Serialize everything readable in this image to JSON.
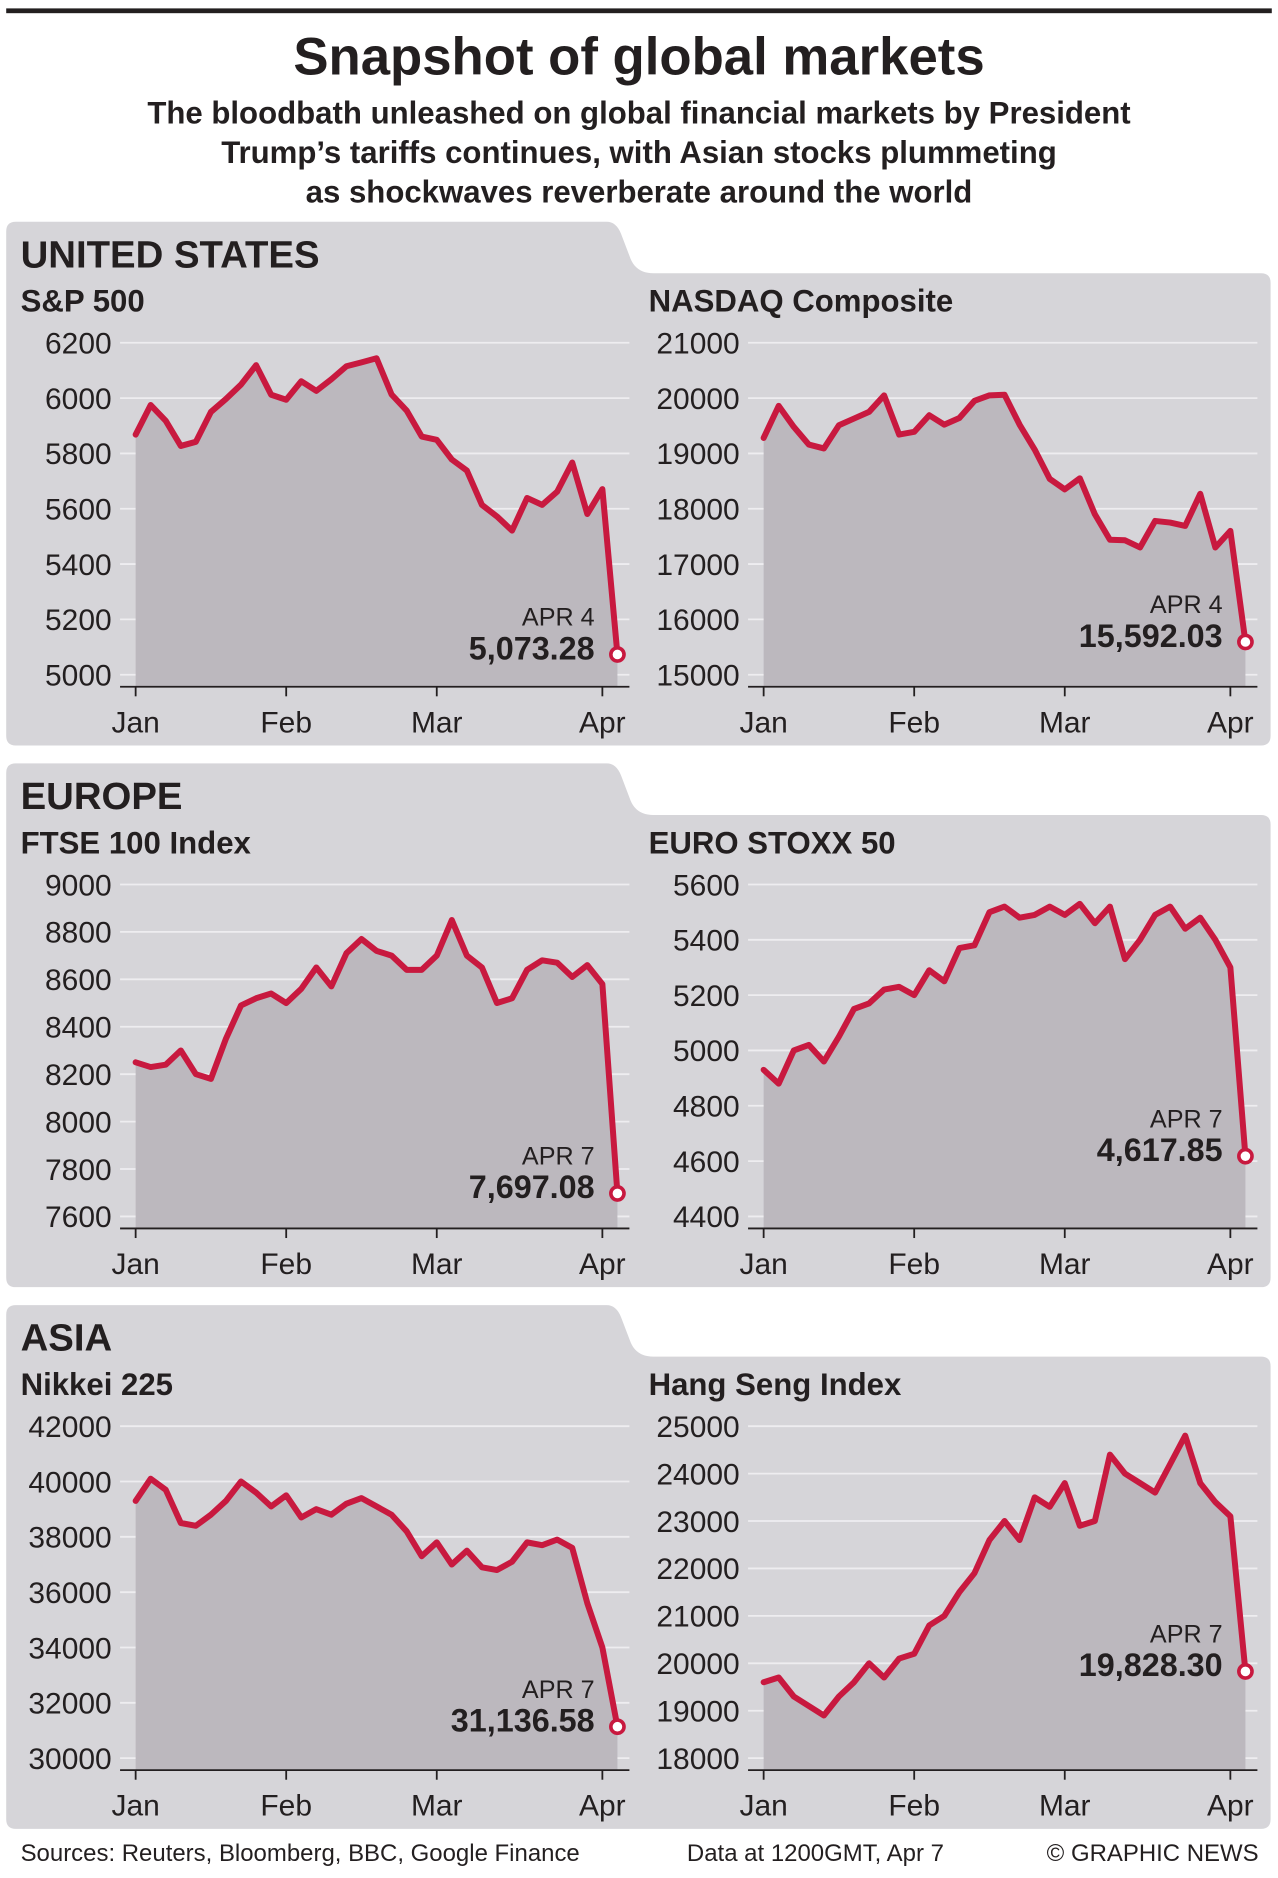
{
  "title": "Snapshot of global markets",
  "subtitle": [
    "The bloodbath unleashed on global financial markets by President",
    "Trump’s tariffs continues, with Asian stocks plummeting",
    "as shockwaves reverberate around the world"
  ],
  "sections": [
    "UNITED STATES",
    "EUROPE",
    "ASIA"
  ],
  "sources": "Sources: Reuters, Bloomberg, BBC, Google Finance",
  "data_note": "Data at 1200GMT, Apr 7",
  "credit": "© GRAPHIC NEWS",
  "chart_data": [
    {
      "type": "line",
      "title": "S&P 500",
      "color": "#c8193f",
      "area_color": "#bcb8be",
      "grid": true,
      "categories": [
        "Jan",
        null,
        null,
        null,
        null,
        null,
        null,
        null,
        null,
        null,
        "Feb",
        null,
        null,
        null,
        null,
        null,
        null,
        null,
        null,
        null,
        "Mar",
        null,
        null,
        null,
        null,
        null,
        null,
        null,
        null,
        null,
        null,
        "Apr",
        null
      ],
      "values": [
        5868,
        5975,
        5918,
        5827,
        5842,
        5950,
        5997,
        6049,
        6119,
        6012,
        5994,
        6061,
        6026,
        6068,
        6115,
        6129,
        6144,
        6013,
        5955,
        5861,
        5849,
        5778,
        5738,
        5614,
        5572,
        5521,
        5639,
        5614,
        5662,
        5767,
        5581,
        5671,
        5073.28
      ],
      "value_labels": [
        null,
        null,
        null,
        null,
        null,
        null,
        null,
        null,
        null,
        null,
        null,
        null,
        null,
        null,
        null,
        null,
        null,
        null,
        null,
        null,
        null,
        null,
        null,
        null,
        null,
        null,
        null,
        null,
        null,
        null,
        null,
        null,
        "5,073.28"
      ],
      "last_date": "APR 4",
      "ylim": [
        5000,
        6200
      ],
      "yticks": [
        5000,
        5200,
        5400,
        5600,
        5800,
        6000,
        6200
      ]
    },
    {
      "type": "line",
      "title": "NASDAQ Composite",
      "color": "#c8193f",
      "area_color": "#bcb8be",
      "grid": true,
      "categories": [
        "Jan",
        null,
        null,
        null,
        null,
        null,
        null,
        null,
        null,
        null,
        "Feb",
        null,
        null,
        null,
        null,
        null,
        null,
        null,
        null,
        null,
        "Mar",
        null,
        null,
        null,
        null,
        null,
        null,
        null,
        null,
        null,
        null,
        "Apr",
        null
      ],
      "values": [
        19280,
        19860,
        19480,
        19160,
        19090,
        19510,
        19630,
        19750,
        20050,
        19340,
        19390,
        19690,
        19520,
        19640,
        19950,
        20050,
        20060,
        19520,
        19070,
        18540,
        18350,
        18550,
        17900,
        17440,
        17430,
        17300,
        17780,
        17750,
        17690,
        18270,
        17300,
        17600,
        15592.03
      ],
      "value_labels": [
        null,
        null,
        null,
        null,
        null,
        null,
        null,
        null,
        null,
        null,
        null,
        null,
        null,
        null,
        null,
        null,
        null,
        null,
        null,
        null,
        null,
        null,
        null,
        null,
        null,
        null,
        null,
        null,
        null,
        null,
        null,
        null,
        "15,592.03"
      ],
      "last_date": "APR 4",
      "ylim": [
        15000,
        21000
      ],
      "yticks": [
        15000,
        16000,
        17000,
        18000,
        19000,
        20000,
        21000
      ]
    },
    {
      "type": "line",
      "title": "FTSE 100 Index",
      "color": "#c8193f",
      "area_color": "#bcb8be",
      "grid": true,
      "categories": [
        "Jan",
        null,
        null,
        null,
        null,
        null,
        null,
        null,
        null,
        null,
        "Feb",
        null,
        null,
        null,
        null,
        null,
        null,
        null,
        null,
        null,
        "Mar",
        null,
        null,
        null,
        null,
        null,
        null,
        null,
        null,
        null,
        null,
        "Apr",
        null
      ],
      "values": [
        8250,
        8230,
        8240,
        8300,
        8200,
        8180,
        8350,
        8490,
        8520,
        8540,
        8500,
        8560,
        8650,
        8570,
        8710,
        8770,
        8720,
        8700,
        8640,
        8640,
        8700,
        8850,
        8700,
        8650,
        8500,
        8520,
        8640,
        8680,
        8670,
        8610,
        8660,
        8580,
        7697.08
      ],
      "value_labels": [
        null,
        null,
        null,
        null,
        null,
        null,
        null,
        null,
        null,
        null,
        null,
        null,
        null,
        null,
        null,
        null,
        null,
        null,
        null,
        null,
        null,
        null,
        null,
        null,
        null,
        null,
        null,
        null,
        null,
        null,
        null,
        null,
        "7,697.08"
      ],
      "last_date": "APR 7",
      "ylim": [
        7600,
        9000
      ],
      "yticks": [
        7600,
        7800,
        8000,
        8200,
        8400,
        8600,
        8800,
        9000
      ]
    },
    {
      "type": "line",
      "title": "EURO STOXX 50",
      "color": "#c8193f",
      "area_color": "#bcb8be",
      "grid": true,
      "categories": [
        "Jan",
        null,
        null,
        null,
        null,
        null,
        null,
        null,
        null,
        null,
        "Feb",
        null,
        null,
        null,
        null,
        null,
        null,
        null,
        null,
        null,
        "Mar",
        null,
        null,
        null,
        null,
        null,
        null,
        null,
        null,
        null,
        null,
        "Apr",
        null
      ],
      "values": [
        4930,
        4880,
        5000,
        5020,
        4960,
        5050,
        5150,
        5170,
        5220,
        5230,
        5200,
        5290,
        5250,
        5370,
        5380,
        5500,
        5520,
        5480,
        5490,
        5520,
        5490,
        5530,
        5460,
        5520,
        5330,
        5400,
        5490,
        5520,
        5440,
        5480,
        5400,
        5300,
        4617.85
      ],
      "value_labels": [
        null,
        null,
        null,
        null,
        null,
        null,
        null,
        null,
        null,
        null,
        null,
        null,
        null,
        null,
        null,
        null,
        null,
        null,
        null,
        null,
        null,
        null,
        null,
        null,
        null,
        null,
        null,
        null,
        null,
        null,
        null,
        null,
        "4,617.85"
      ],
      "last_date": "APR 7",
      "ylim": [
        4400,
        5600
      ],
      "yticks": [
        4400,
        4600,
        4800,
        5000,
        5200,
        5400,
        5600
      ]
    },
    {
      "type": "line",
      "title": "Nikkei 225",
      "color": "#c8193f",
      "area_color": "#bcb8be",
      "grid": true,
      "categories": [
        "Jan",
        null,
        null,
        null,
        null,
        null,
        null,
        null,
        null,
        null,
        "Feb",
        null,
        null,
        null,
        null,
        null,
        null,
        null,
        null,
        null,
        "Mar",
        null,
        null,
        null,
        null,
        null,
        null,
        null,
        null,
        null,
        null,
        "Apr",
        null
      ],
      "values": [
        39300,
        40100,
        39700,
        38500,
        38400,
        38800,
        39300,
        40000,
        39600,
        39100,
        39500,
        38700,
        39000,
        38800,
        39200,
        39400,
        39100,
        38800,
        38200,
        37300,
        37800,
        37000,
        37500,
        36900,
        36800,
        37100,
        37800,
        37700,
        37900,
        37600,
        35600,
        34000,
        31136.58
      ],
      "value_labels": [
        null,
        null,
        null,
        null,
        null,
        null,
        null,
        null,
        null,
        null,
        null,
        null,
        null,
        null,
        null,
        null,
        null,
        null,
        null,
        null,
        null,
        null,
        null,
        null,
        null,
        null,
        null,
        null,
        null,
        null,
        null,
        null,
        "31,136.58"
      ],
      "last_date": "APR 7",
      "ylim": [
        30000,
        42000
      ],
      "yticks": [
        30000,
        32000,
        34000,
        36000,
        38000,
        40000,
        42000
      ]
    },
    {
      "type": "line",
      "title": "Hang Seng Index",
      "color": "#c8193f",
      "area_color": "#bcb8be",
      "grid": true,
      "categories": [
        "Jan",
        null,
        null,
        null,
        null,
        null,
        null,
        null,
        null,
        null,
        "Feb",
        null,
        null,
        null,
        null,
        null,
        null,
        null,
        null,
        null,
        "Mar",
        null,
        null,
        null,
        null,
        null,
        null,
        null,
        null,
        null,
        null,
        "Apr",
        null
      ],
      "values": [
        19600,
        19700,
        19300,
        19100,
        18900,
        19300,
        19600,
        20000,
        19700,
        20100,
        20200,
        20800,
        21000,
        21500,
        21900,
        22600,
        23000,
        22600,
        23500,
        23300,
        23800,
        22900,
        23000,
        24400,
        24000,
        23800,
        23600,
        24200,
        24800,
        23800,
        23400,
        23100,
        19828.3
      ],
      "value_labels": [
        null,
        null,
        null,
        null,
        null,
        null,
        null,
        null,
        null,
        null,
        null,
        null,
        null,
        null,
        null,
        null,
        null,
        null,
        null,
        null,
        null,
        null,
        null,
        null,
        null,
        null,
        null,
        null,
        null,
        null,
        null,
        null,
        "19,828.30"
      ],
      "last_date": "APR 7",
      "ylim": [
        18000,
        25000
      ],
      "yticks": [
        18000,
        19000,
        20000,
        21000,
        22000,
        23000,
        24000,
        25000
      ]
    }
  ]
}
